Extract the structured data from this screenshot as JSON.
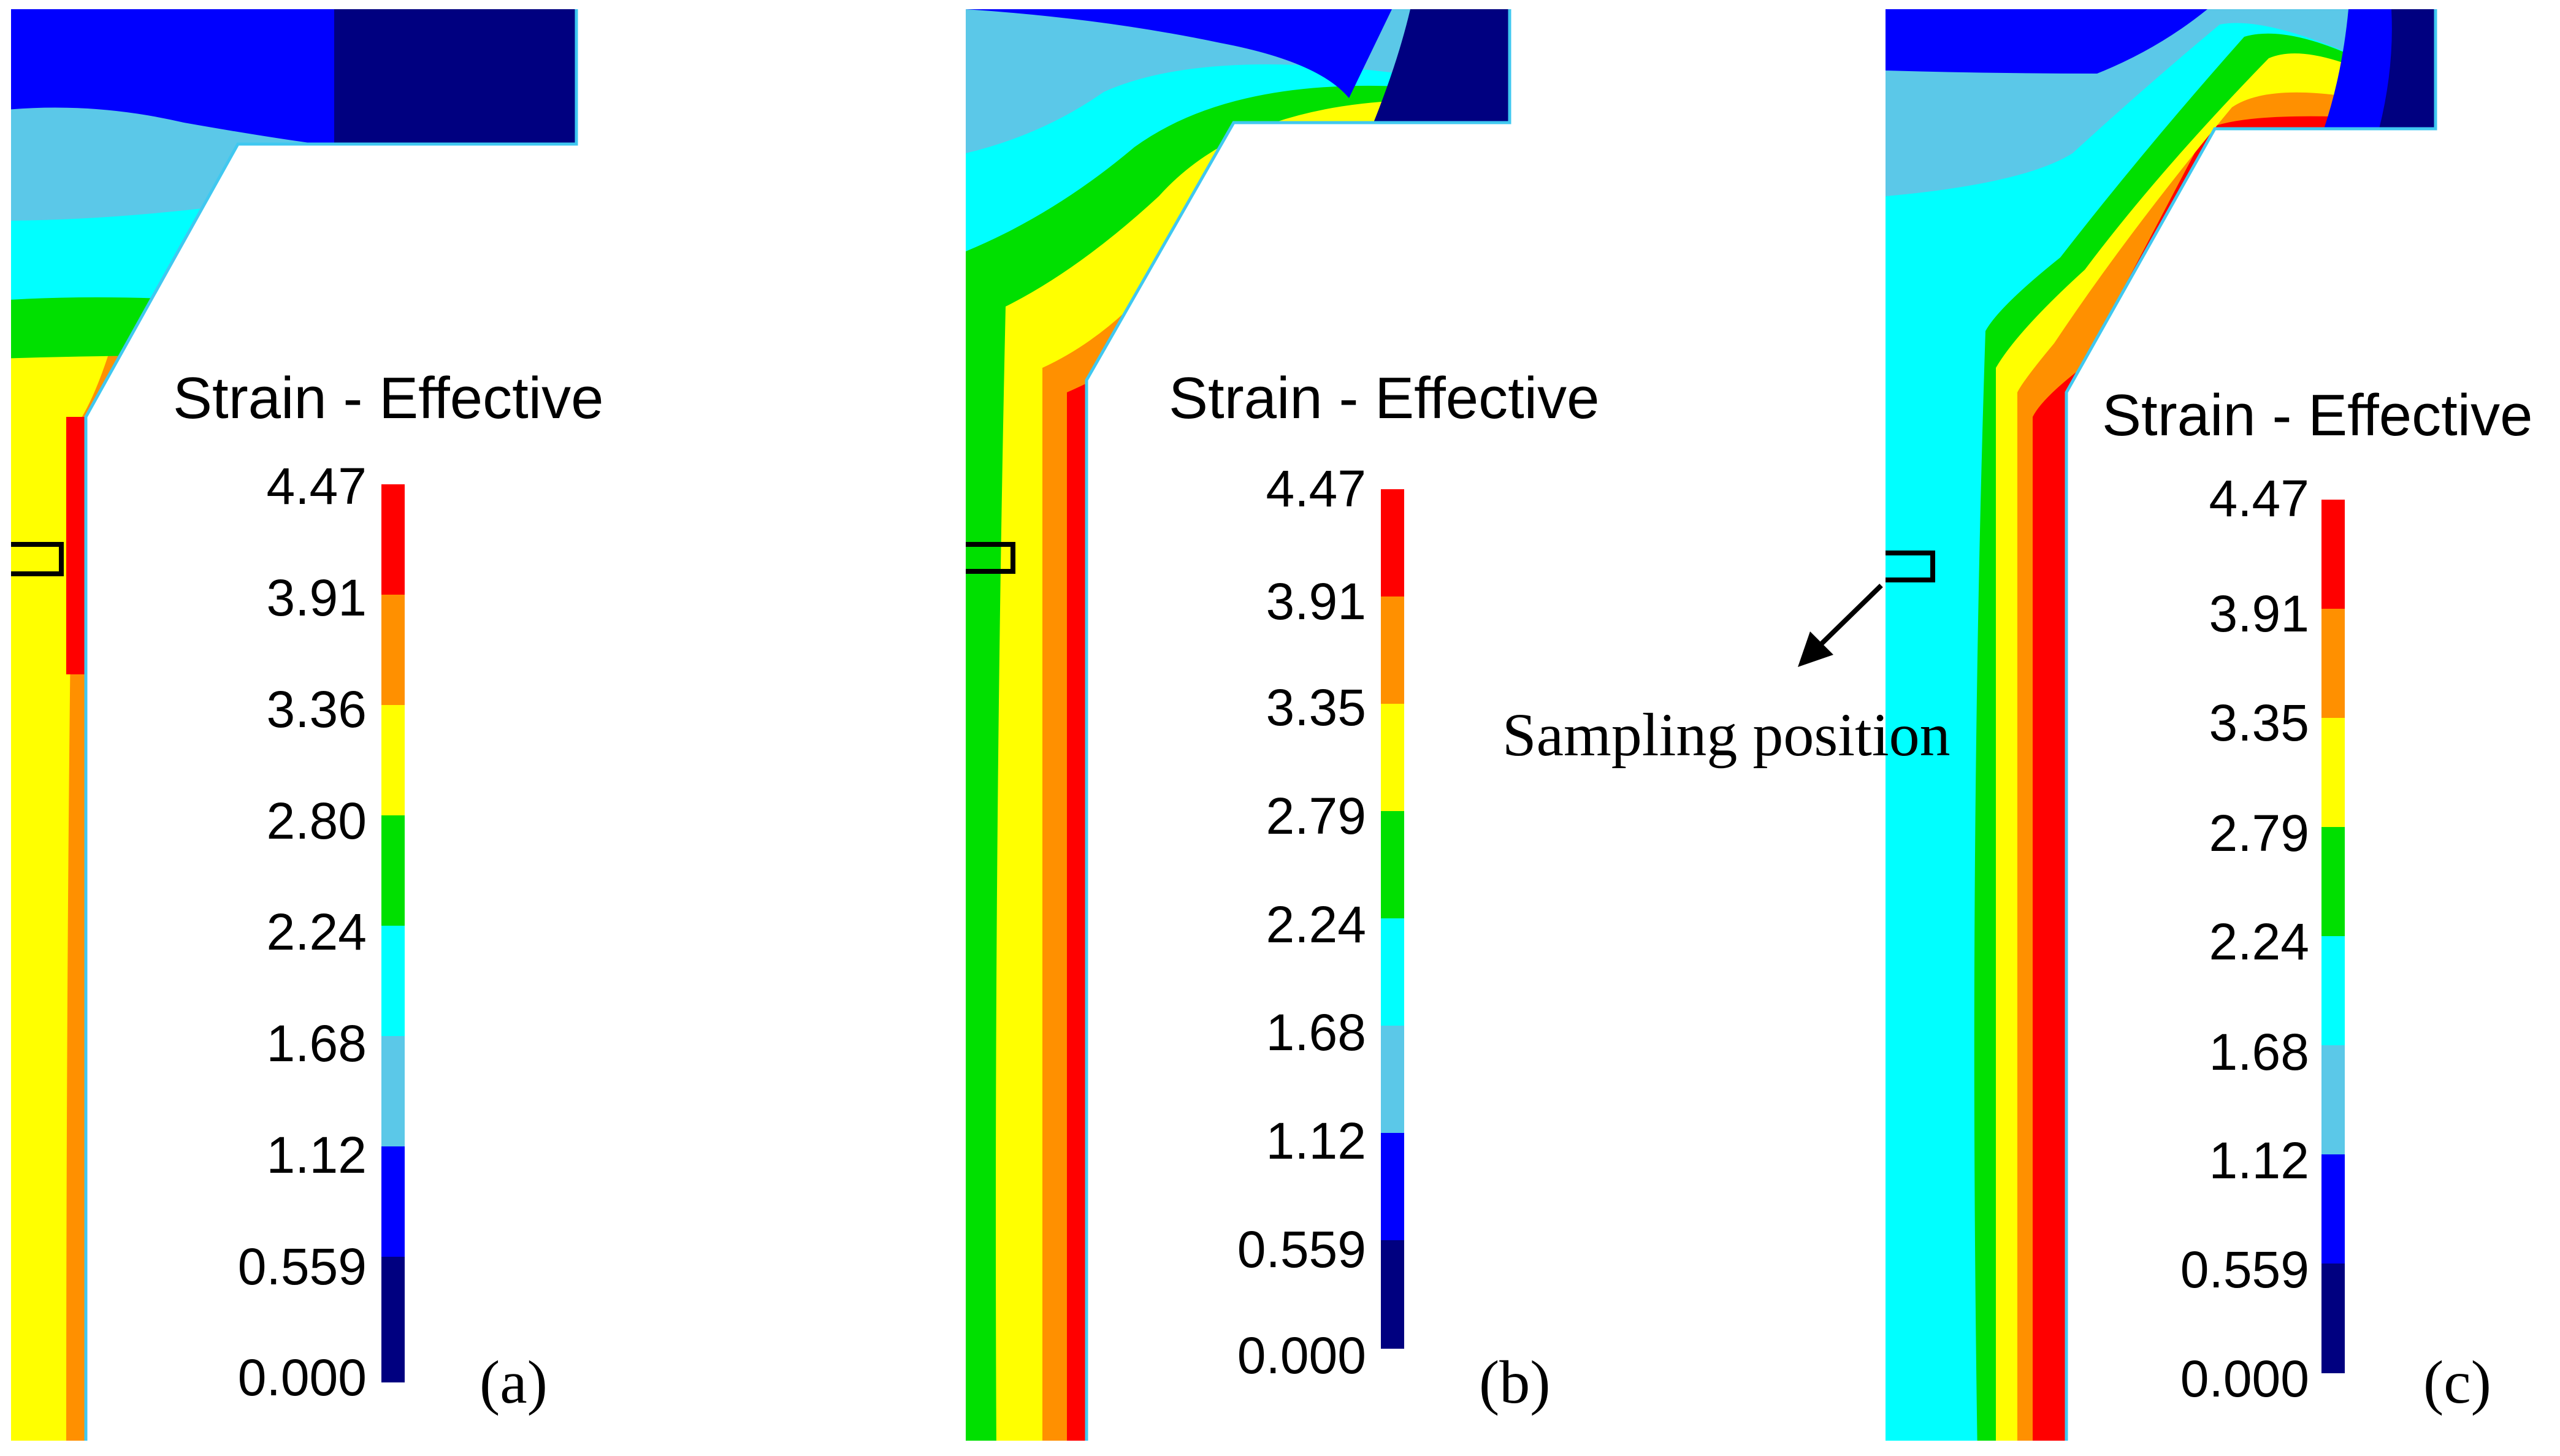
{
  "figure": {
    "colors": {
      "c0": "#000080",
      "c1": "#0000FF",
      "c2": "#5BC8E8",
      "c3": "#00FFFF",
      "c4": "#00E000",
      "c5": "#FFFF00",
      "c6": "#FF9000",
      "c7": "#FF0000",
      "outline": "#40C8F0",
      "box": "#000000"
    },
    "annotation": {
      "text": "Sampling position"
    },
    "panels": [
      {
        "label": "(a)",
        "legend_title": "Strain - Effective",
        "ticks": [
          "4.47",
          "3.91",
          "3.36",
          "2.80",
          "2.24",
          "1.68",
          "1.12",
          "0.559",
          "0.000"
        ]
      },
      {
        "label": "(b)",
        "legend_title": "Strain - Effective",
        "ticks": [
          "4.47",
          "3.91",
          "3.35",
          "2.79",
          "2.24",
          "1.68",
          "1.12",
          "0.559",
          "0.000"
        ]
      },
      {
        "label": "(c)",
        "legend_title": "Strain - Effective",
        "ticks": [
          "4.47",
          "3.91",
          "3.35",
          "2.79",
          "2.24",
          "1.68",
          "1.12",
          "0.559",
          "0.000"
        ]
      }
    ]
  }
}
